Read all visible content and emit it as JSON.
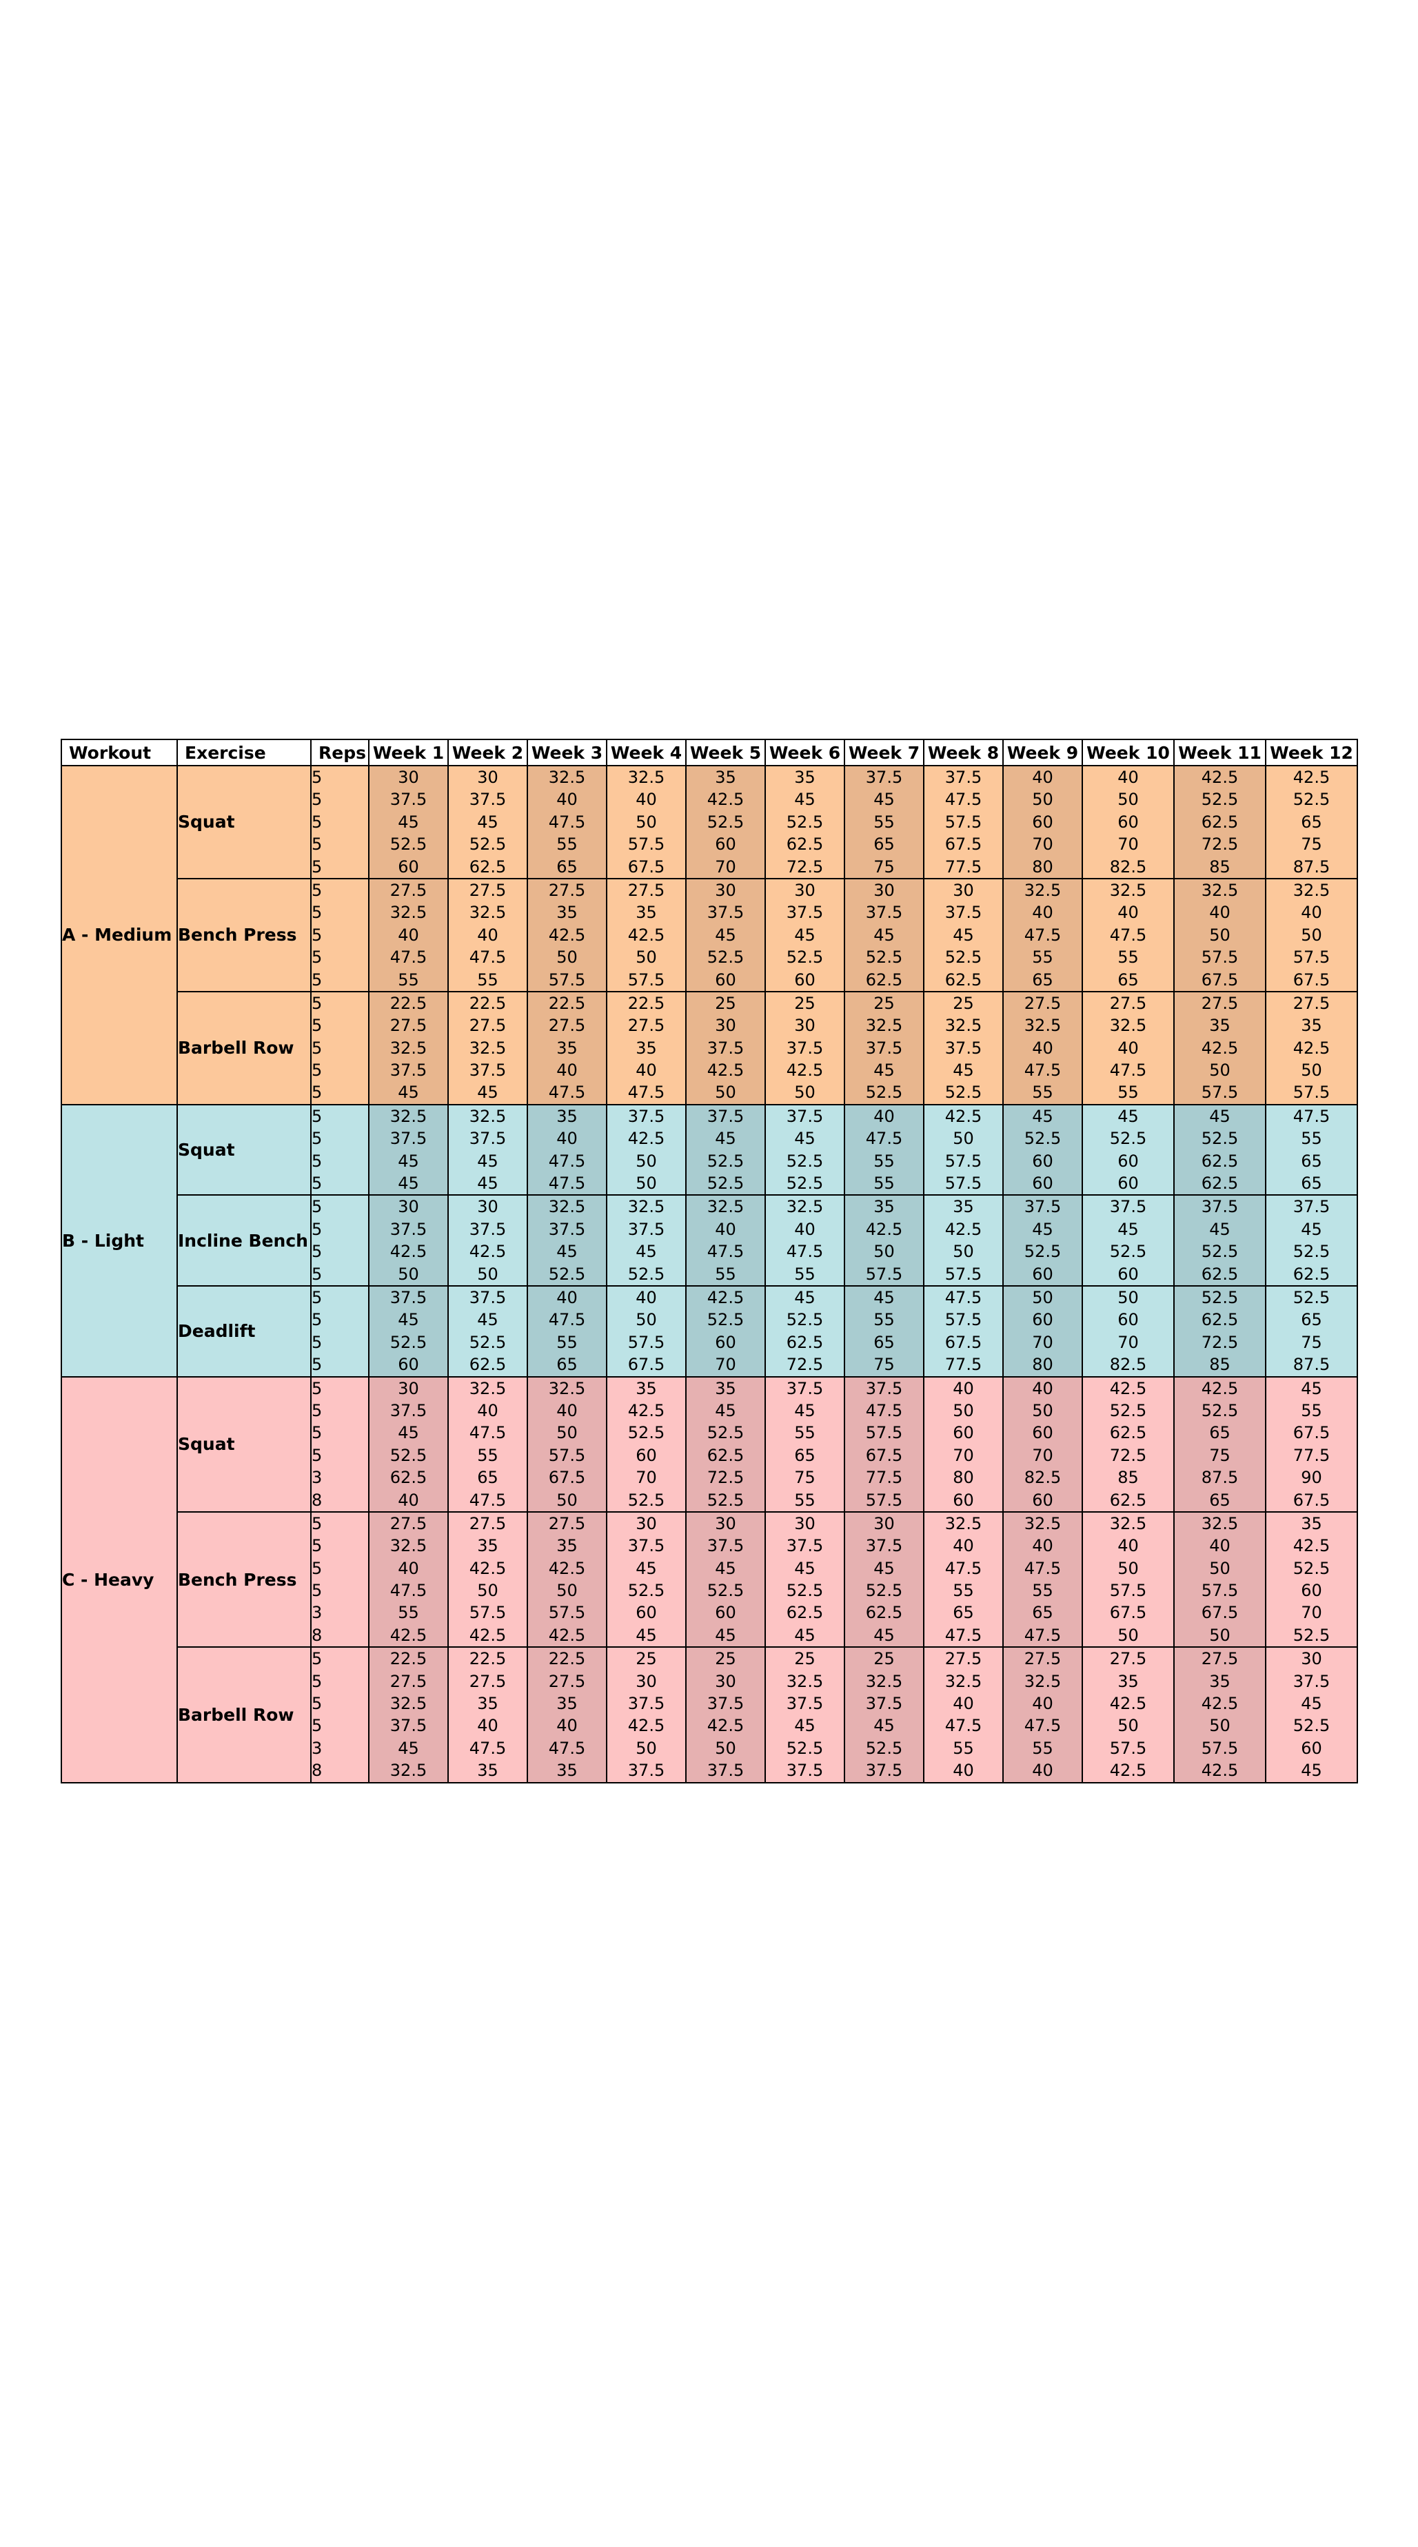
{
  "table": {
    "headers": [
      "Workout",
      "Exercise",
      "Reps",
      "Week 1",
      "Week 2",
      "Week 3",
      "Week 4",
      "Week 5",
      "Week 6",
      "Week 7",
      "Week 8",
      "Week 9",
      "Week 10",
      "Week 11",
      "Week 12"
    ],
    "workouts": [
      {
        "name": "A - Medium",
        "color": "#fcc89b",
        "alt_color": "#e8b68e",
        "exercises": [
          {
            "name": "Squat",
            "reps": [
              "5",
              "5",
              "5",
              "5",
              "5"
            ],
            "weeks": [
              [
                "30",
                "37.5",
                "45",
                "52.5",
                "60"
              ],
              [
                "30",
                "37.5",
                "45",
                "52.5",
                "62.5"
              ],
              [
                "32.5",
                "40",
                "47.5",
                "55",
                "65"
              ],
              [
                "32.5",
                "40",
                "50",
                "57.5",
                "67.5"
              ],
              [
                "35",
                "42.5",
                "52.5",
                "60",
                "70"
              ],
              [
                "35",
                "45",
                "52.5",
                "62.5",
                "72.5"
              ],
              [
                "37.5",
                "45",
                "55",
                "65",
                "75"
              ],
              [
                "37.5",
                "47.5",
                "57.5",
                "67.5",
                "77.5"
              ],
              [
                "40",
                "50",
                "60",
                "70",
                "80"
              ],
              [
                "40",
                "50",
                "60",
                "70",
                "82.5"
              ],
              [
                "42.5",
                "52.5",
                "62.5",
                "72.5",
                "85"
              ],
              [
                "42.5",
                "52.5",
                "65",
                "75",
                "87.5"
              ]
            ]
          },
          {
            "name": "Bench Press",
            "reps": [
              "5",
              "5",
              "5",
              "5",
              "5"
            ],
            "weeks": [
              [
                "27.5",
                "32.5",
                "40",
                "47.5",
                "55"
              ],
              [
                "27.5",
                "32.5",
                "40",
                "47.5",
                "55"
              ],
              [
                "27.5",
                "35",
                "42.5",
                "50",
                "57.5"
              ],
              [
                "27.5",
                "35",
                "42.5",
                "50",
                "57.5"
              ],
              [
                "30",
                "37.5",
                "45",
                "52.5",
                "60"
              ],
              [
                "30",
                "37.5",
                "45",
                "52.5",
                "60"
              ],
              [
                "30",
                "37.5",
                "45",
                "52.5",
                "62.5"
              ],
              [
                "30",
                "37.5",
                "45",
                "52.5",
                "62.5"
              ],
              [
                "32.5",
                "40",
                "47.5",
                "55",
                "65"
              ],
              [
                "32.5",
                "40",
                "47.5",
                "55",
                "65"
              ],
              [
                "32.5",
                "40",
                "50",
                "57.5",
                "67.5"
              ],
              [
                "32.5",
                "40",
                "50",
                "57.5",
                "67.5"
              ]
            ]
          },
          {
            "name": "Barbell Row",
            "reps": [
              "5",
              "5",
              "5",
              "5",
              "5"
            ],
            "weeks": [
              [
                "22.5",
                "27.5",
                "32.5",
                "37.5",
                "45"
              ],
              [
                "22.5",
                "27.5",
                "32.5",
                "37.5",
                "45"
              ],
              [
                "22.5",
                "27.5",
                "35",
                "40",
                "47.5"
              ],
              [
                "22.5",
                "27.5",
                "35",
                "40",
                "47.5"
              ],
              [
                "25",
                "30",
                "37.5",
                "42.5",
                "50"
              ],
              [
                "25",
                "30",
                "37.5",
                "42.5",
                "50"
              ],
              [
                "25",
                "32.5",
                "37.5",
                "45",
                "52.5"
              ],
              [
                "25",
                "32.5",
                "37.5",
                "45",
                "52.5"
              ],
              [
                "27.5",
                "32.5",
                "40",
                "47.5",
                "55"
              ],
              [
                "27.5",
                "32.5",
                "40",
                "47.5",
                "55"
              ],
              [
                "27.5",
                "35",
                "42.5",
                "50",
                "57.5"
              ],
              [
                "27.5",
                "35",
                "42.5",
                "50",
                "57.5"
              ]
            ]
          }
        ]
      },
      {
        "name": "B - Light",
        "color": "#bde3e6",
        "alt_color": "#a9ccd0",
        "exercises": [
          {
            "name": "Squat",
            "reps": [
              "5",
              "5",
              "5",
              "5"
            ],
            "weeks": [
              [
                "32.5",
                "37.5",
                "45",
                "45"
              ],
              [
                "32.5",
                "37.5",
                "45",
                "45"
              ],
              [
                "35",
                "40",
                "47.5",
                "47.5"
              ],
              [
                "37.5",
                "42.5",
                "50",
                "50"
              ],
              [
                "37.5",
                "45",
                "52.5",
                "52.5"
              ],
              [
                "37.5",
                "45",
                "52.5",
                "52.5"
              ],
              [
                "40",
                "47.5",
                "55",
                "55"
              ],
              [
                "42.5",
                "50",
                "57.5",
                "57.5"
              ],
              [
                "45",
                "52.5",
                "60",
                "60"
              ],
              [
                "45",
                "52.5",
                "60",
                "60"
              ],
              [
                "45",
                "52.5",
                "62.5",
                "62.5"
              ],
              [
                "47.5",
                "55",
                "65",
                "65"
              ]
            ]
          },
          {
            "name": "Incline Bench",
            "reps": [
              "5",
              "5",
              "5",
              "5"
            ],
            "weeks": [
              [
                "30",
                "37.5",
                "42.5",
                "50"
              ],
              [
                "30",
                "37.5",
                "42.5",
                "50"
              ],
              [
                "32.5",
                "37.5",
                "45",
                "52.5"
              ],
              [
                "32.5",
                "37.5",
                "45",
                "52.5"
              ],
              [
                "32.5",
                "40",
                "47.5",
                "55"
              ],
              [
                "32.5",
                "40",
                "47.5",
                "55"
              ],
              [
                "35",
                "42.5",
                "50",
                "57.5"
              ],
              [
                "35",
                "42.5",
                "50",
                "57.5"
              ],
              [
                "37.5",
                "45",
                "52.5",
                "60"
              ],
              [
                "37.5",
                "45",
                "52.5",
                "60"
              ],
              [
                "37.5",
                "45",
                "52.5",
                "62.5"
              ],
              [
                "37.5",
                "45",
                "52.5",
                "62.5"
              ]
            ]
          },
          {
            "name": "Deadlift",
            "reps": [
              "5",
              "5",
              "5",
              "5"
            ],
            "weeks": [
              [
                "37.5",
                "45",
                "52.5",
                "60"
              ],
              [
                "37.5",
                "45",
                "52.5",
                "62.5"
              ],
              [
                "40",
                "47.5",
                "55",
                "65"
              ],
              [
                "40",
                "50",
                "57.5",
                "67.5"
              ],
              [
                "42.5",
                "52.5",
                "60",
                "70"
              ],
              [
                "45",
                "52.5",
                "62.5",
                "72.5"
              ],
              [
                "45",
                "55",
                "65",
                "75"
              ],
              [
                "47.5",
                "57.5",
                "67.5",
                "77.5"
              ],
              [
                "50",
                "60",
                "70",
                "80"
              ],
              [
                "50",
                "60",
                "70",
                "82.5"
              ],
              [
                "52.5",
                "62.5",
                "72.5",
                "85"
              ],
              [
                "52.5",
                "65",
                "75",
                "87.5"
              ]
            ]
          }
        ]
      },
      {
        "name": "C - Heavy",
        "color": "#fdc4c4",
        "alt_color": "#e6b1b1",
        "exercises": [
          {
            "name": "Squat",
            "reps": [
              "5",
              "5",
              "5",
              "5",
              "3",
              "8"
            ],
            "weeks": [
              [
                "30",
                "37.5",
                "45",
                "52.5",
                "62.5",
                "40"
              ],
              [
                "32.5",
                "40",
                "47.5",
                "55",
                "65",
                "47.5"
              ],
              [
                "32.5",
                "40",
                "50",
                "57.5",
                "67.5",
                "50"
              ],
              [
                "35",
                "42.5",
                "52.5",
                "60",
                "70",
                "52.5"
              ],
              [
                "35",
                "45",
                "52.5",
                "62.5",
                "72.5",
                "52.5"
              ],
              [
                "37.5",
                "45",
                "55",
                "65",
                "75",
                "55"
              ],
              [
                "37.5",
                "47.5",
                "57.5",
                "67.5",
                "77.5",
                "57.5"
              ],
              [
                "40",
                "50",
                "60",
                "70",
                "80",
                "60"
              ],
              [
                "40",
                "50",
                "60",
                "70",
                "82.5",
                "60"
              ],
              [
                "42.5",
                "52.5",
                "62.5",
                "72.5",
                "85",
                "62.5"
              ],
              [
                "42.5",
                "52.5",
                "65",
                "75",
                "87.5",
                "65"
              ],
              [
                "45",
                "55",
                "67.5",
                "77.5",
                "90",
                "67.5"
              ]
            ]
          },
          {
            "name": "Bench Press",
            "reps": [
              "5",
              "5",
              "5",
              "5",
              "3",
              "8"
            ],
            "weeks": [
              [
                "27.5",
                "32.5",
                "40",
                "47.5",
                "55",
                "42.5"
              ],
              [
                "27.5",
                "35",
                "42.5",
                "50",
                "57.5",
                "42.5"
              ],
              [
                "27.5",
                "35",
                "42.5",
                "50",
                "57.5",
                "42.5"
              ],
              [
                "30",
                "37.5",
                "45",
                "52.5",
                "60",
                "45"
              ],
              [
                "30",
                "37.5",
                "45",
                "52.5",
                "60",
                "45"
              ],
              [
                "30",
                "37.5",
                "45",
                "52.5",
                "62.5",
                "45"
              ],
              [
                "30",
                "37.5",
                "45",
                "52.5",
                "62.5",
                "45"
              ],
              [
                "32.5",
                "40",
                "47.5",
                "55",
                "65",
                "47.5"
              ],
              [
                "32.5",
                "40",
                "47.5",
                "55",
                "65",
                "47.5"
              ],
              [
                "32.5",
                "40",
                "50",
                "57.5",
                "67.5",
                "50"
              ],
              [
                "32.5",
                "40",
                "50",
                "57.5",
                "67.5",
                "50"
              ],
              [
                "35",
                "42.5",
                "52.5",
                "60",
                "70",
                "52.5"
              ]
            ]
          },
          {
            "name": "Barbell Row",
            "reps": [
              "5",
              "5",
              "5",
              "5",
              "3",
              "8"
            ],
            "weeks": [
              [
                "22.5",
                "27.5",
                "32.5",
                "37.5",
                "45",
                "32.5"
              ],
              [
                "22.5",
                "27.5",
                "35",
                "40",
                "47.5",
                "35"
              ],
              [
                "22.5",
                "27.5",
                "35",
                "40",
                "47.5",
                "35"
              ],
              [
                "25",
                "30",
                "37.5",
                "42.5",
                "50",
                "37.5"
              ],
              [
                "25",
                "30",
                "37.5",
                "42.5",
                "50",
                "37.5"
              ],
              [
                "25",
                "32.5",
                "37.5",
                "45",
                "52.5",
                "37.5"
              ],
              [
                "25",
                "32.5",
                "37.5",
                "45",
                "52.5",
                "37.5"
              ],
              [
                "27.5",
                "32.5",
                "40",
                "47.5",
                "55",
                "40"
              ],
              [
                "27.5",
                "32.5",
                "40",
                "47.5",
                "55",
                "40"
              ],
              [
                "27.5",
                "35",
                "42.5",
                "50",
                "57.5",
                "42.5"
              ],
              [
                "27.5",
                "35",
                "42.5",
                "50",
                "57.5",
                "42.5"
              ],
              [
                "30",
                "37.5",
                "45",
                "52.5",
                "60",
                "45"
              ]
            ]
          }
        ]
      }
    ]
  }
}
